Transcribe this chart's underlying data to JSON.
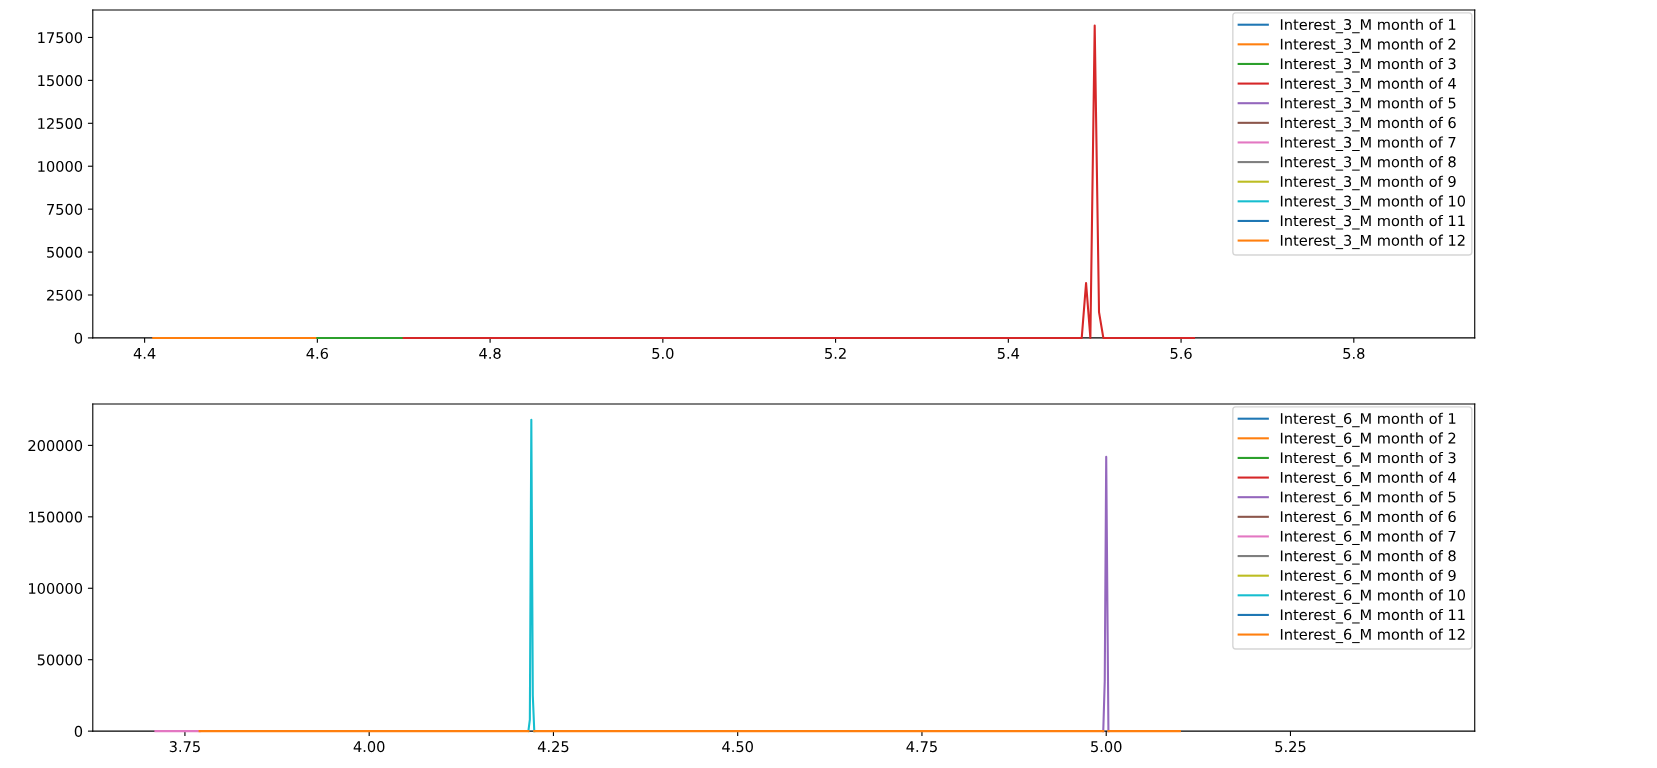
{
  "chart_data": [
    {
      "type": "line",
      "xlim": [
        4.34,
        5.94
      ],
      "xticks": [
        4.4,
        4.6,
        4.8,
        {
          "value": 5.0,
          "label": "5.0"
        },
        5.2,
        5.4,
        5.6,
        5.8
      ],
      "ylim": [
        0,
        19100
      ],
      "yticks": [
        0,
        2500,
        5000,
        7500,
        10000,
        12500,
        15000,
        17500
      ],
      "legend": "top right",
      "grid": false,
      "series": [
        {
          "name": "Interest_3_M month of 1",
          "color": "#1f77b4"
        },
        {
          "name": "Interest_3_M month of 2",
          "color": "#ff7f0e",
          "x": [
            4.41,
            4.6
          ],
          "values": [
            0,
            0
          ]
        },
        {
          "name": "Interest_3_M month of 3",
          "color": "#2ca02c",
          "x": [
            4.6,
            4.7
          ],
          "values": [
            0,
            0
          ]
        },
        {
          "name": "Interest_3_M month of 4",
          "color": "#d62728",
          "x": [
            4.7,
            5.485,
            5.49,
            5.495,
            5.5,
            5.505,
            5.51,
            5.615
          ],
          "values": [
            0,
            0,
            3200,
            0,
            18200,
            1500,
            0,
            0
          ]
        },
        {
          "name": "Interest_3_M month of 5",
          "color": "#9467bd"
        },
        {
          "name": "Interest_3_M month of 6",
          "color": "#8c564b"
        },
        {
          "name": "Interest_3_M month of 7",
          "color": "#e377c2"
        },
        {
          "name": "Interest_3_M month of 8",
          "color": "#7f7f7f"
        },
        {
          "name": "Interest_3_M month of 9",
          "color": "#bcbd22"
        },
        {
          "name": "Interest_3_M month of 10",
          "color": "#17becf"
        },
        {
          "name": "Interest_3_M month of 11",
          "color": "#1f77b4"
        },
        {
          "name": "Interest_3_M month of 12",
          "color": "#ff7f0e"
        }
      ]
    },
    {
      "type": "line",
      "xlim": [
        3.625,
        5.5
      ],
      "xticks": [
        3.75,
        {
          "value": 4.0,
          "label": "4.00"
        },
        4.25,
        {
          "value": 4.5,
          "label": "4.50"
        },
        4.75,
        {
          "value": 5.0,
          "label": "5.00"
        },
        5.25
      ],
      "ylim": [
        0,
        229000
      ],
      "yticks": [
        0,
        50000,
        100000,
        150000,
        200000
      ],
      "legend": "top right",
      "grid": false,
      "series": [
        {
          "name": "Interest_6_M month of 1",
          "color": "#1f77b4"
        },
        {
          "name": "Interest_6_M month of 2",
          "color": "#ff7f0e"
        },
        {
          "name": "Interest_6_M month of 3",
          "color": "#2ca02c"
        },
        {
          "name": "Interest_6_M month of 4",
          "color": "#d62728"
        },
        {
          "name": "Interest_6_M month of 5",
          "color": "#9467bd",
          "x": [
            4.996,
            4.998,
            5.0,
            5.003
          ],
          "values": [
            0,
            35000,
            192000,
            0
          ]
        },
        {
          "name": "Interest_6_M month of 6",
          "color": "#8c564b"
        },
        {
          "name": "Interest_6_M month of 7",
          "color": "#e377c2",
          "x": [
            3.71,
            3.77
          ],
          "values": [
            0,
            0
          ]
        },
        {
          "name": "Interest_6_M month of 8",
          "color": "#7f7f7f"
        },
        {
          "name": "Interest_6_M month of 9",
          "color": "#bcbd22"
        },
        {
          "name": "Interest_6_M month of 10",
          "color": "#17becf",
          "x": [
            4.216,
            4.218,
            4.22,
            4.222,
            4.224
          ],
          "values": [
            0,
            8000,
            218000,
            25000,
            0
          ]
        },
        {
          "name": "Interest_6_M month of 11",
          "color": "#1f77b4"
        },
        {
          "name": "Interest_6_M month of 12",
          "color": "#ff7f0e",
          "x": [
            3.77,
            4.216,
            4.22,
            4.224,
            4.996,
            5.0,
            5.003,
            5.1
          ],
          "values": [
            0,
            0,
            null,
            0,
            0,
            null,
            0,
            0
          ]
        }
      ]
    }
  ]
}
